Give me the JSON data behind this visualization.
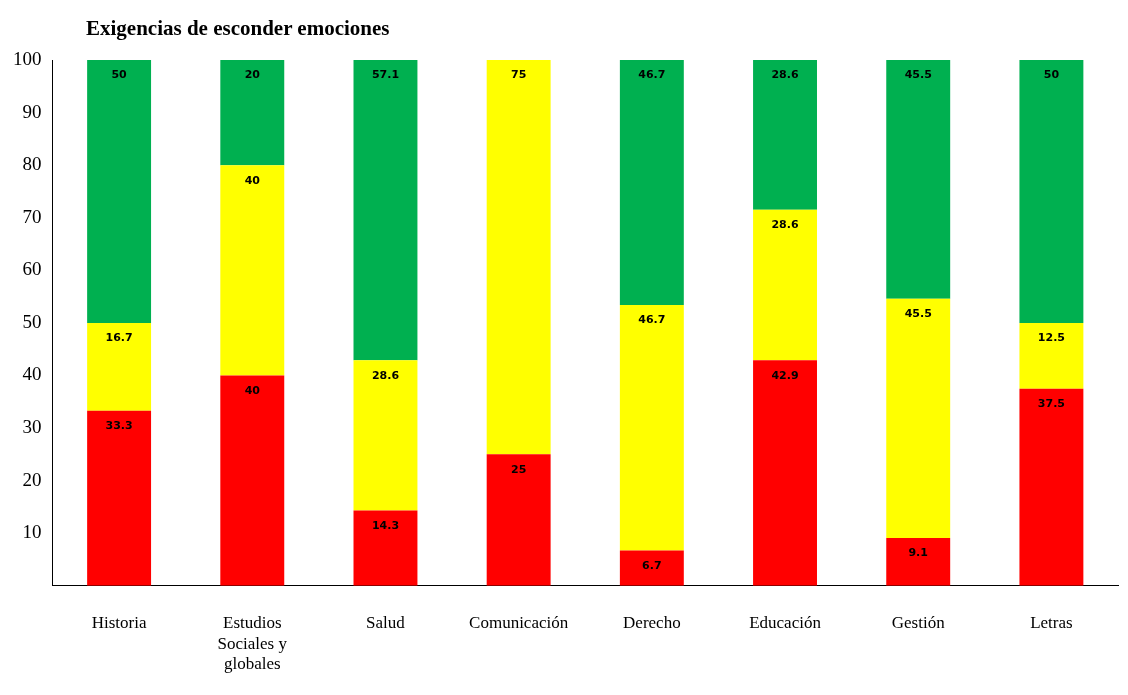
{
  "chart_data": {
    "type": "bar",
    "title": "Exigencias de esconder emociones",
    "stacked": true,
    "data_labels": true,
    "legend": false,
    "grid": false,
    "categories": [
      "Historia",
      "Estudios Sociales y globales",
      "Salud",
      "Comunicación",
      "Derecho",
      "Educación",
      "Gestión",
      "Letras"
    ],
    "ylim": [
      0,
      100
    ],
    "yticks": [
      10,
      20,
      30,
      40,
      50,
      60,
      70,
      80,
      90,
      100
    ],
    "series": [
      {
        "color": "#ff0000",
        "values": [
          33.3,
          40,
          14.3,
          25,
          6.7,
          42.9,
          9.1,
          37.5
        ]
      },
      {
        "color": "#ffff00",
        "values": [
          16.7,
          40,
          28.6,
          75,
          46.7,
          28.6,
          45.5,
          12.5
        ]
      },
      {
        "color": "#00b050",
        "values": [
          50,
          20,
          57.1,
          null,
          46.7,
          28.6,
          45.5,
          50
        ]
      }
    ]
  }
}
